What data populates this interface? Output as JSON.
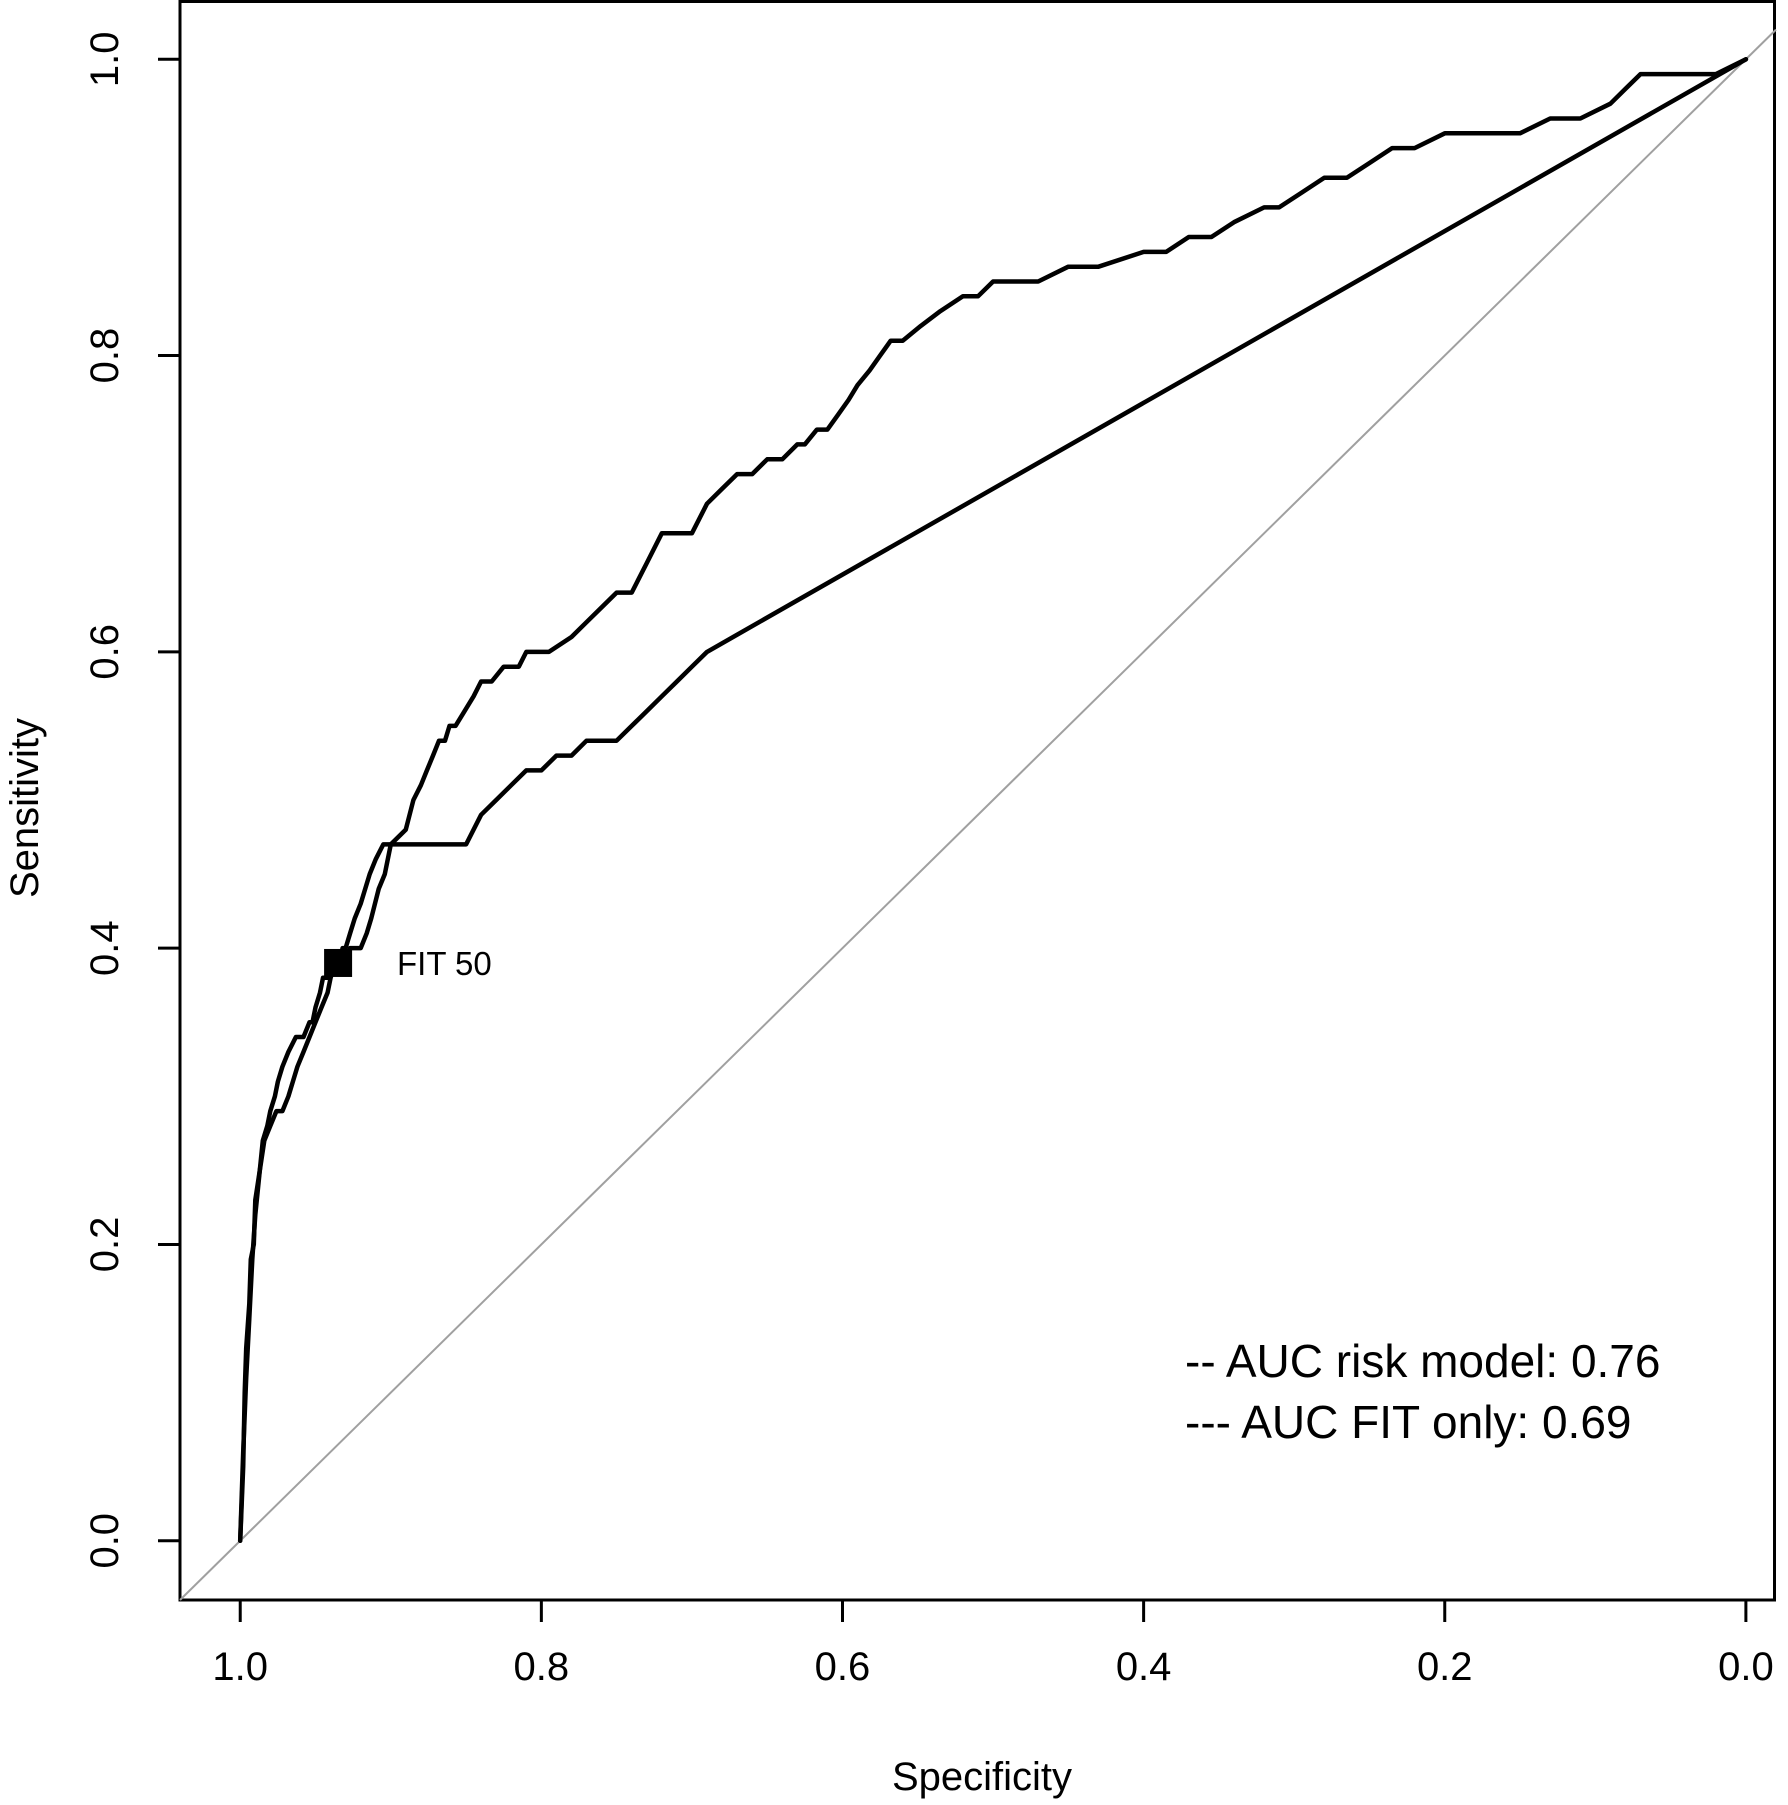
{
  "chart_data": {
    "type": "line",
    "title": "",
    "xlabel": "Specificity",
    "ylabel": "Sensitivity",
    "x_reversed": true,
    "xlim": [
      1.04,
      -0.02
    ],
    "ylim": [
      -0.04,
      1.04
    ],
    "x_ticks": [
      "1.0",
      "0.8",
      "0.6",
      "0.4",
      "0.2",
      "0.0"
    ],
    "x_tick_values": [
      1.0,
      0.8,
      0.6,
      0.4,
      0.2,
      0.0
    ],
    "y_ticks": [
      "0.0",
      "0.2",
      "0.4",
      "0.6",
      "0.8",
      "1.0"
    ],
    "y_tick_values": [
      0.0,
      0.2,
      0.4,
      0.6,
      0.8,
      1.0
    ],
    "grid": false,
    "legend_position": "bottom-right",
    "colors": {
      "line": "#000000",
      "reference": "#a0a0a0",
      "background": "#ffffff"
    },
    "legend": [
      {
        "text": "-- AUC risk model: 0.76"
      },
      {
        "text": "--- AUC FIT only: 0.69"
      }
    ],
    "annotation": {
      "text": "FIT 50",
      "x": 0.935,
      "y": 0.39
    },
    "reference_line": {
      "x": [
        1.0,
        0.0
      ],
      "y": [
        0.0,
        1.0
      ]
    },
    "series": [
      {
        "x": [
          1.0,
          0.998,
          0.997,
          0.996,
          0.994,
          0.993,
          0.991,
          0.99,
          0.987,
          0.985,
          0.982,
          0.98,
          0.977,
          0.975,
          0.972,
          0.968,
          0.963,
          0.958,
          0.954,
          0.952,
          0.95,
          0.947,
          0.945,
          0.942,
          0.94,
          0.937,
          0.935,
          0.932,
          0.93,
          0.927,
          0.92,
          0.916,
          0.913,
          0.908,
          0.904,
          0.9,
          0.89,
          0.885,
          0.88,
          0.876,
          0.872,
          0.868,
          0.864,
          0.861,
          0.857,
          0.851,
          0.845,
          0.84,
          0.833,
          0.825,
          0.82,
          0.815,
          0.81,
          0.795,
          0.78,
          0.77,
          0.76,
          0.75,
          0.74,
          0.73,
          0.72,
          0.7,
          0.69,
          0.68,
          0.67,
          0.66,
          0.65,
          0.64,
          0.63,
          0.625,
          0.617,
          0.61,
          0.603,
          0.596,
          0.59,
          0.582,
          0.575,
          0.568,
          0.56,
          0.548,
          0.535,
          0.52,
          0.51,
          0.5,
          0.49,
          0.47,
          0.45,
          0.43,
          0.4,
          0.385,
          0.37,
          0.355,
          0.34,
          0.32,
          0.31,
          0.295,
          0.28,
          0.265,
          0.25,
          0.235,
          0.22,
          0.2,
          0.18,
          0.15,
          0.13,
          0.11,
          0.09,
          0.08,
          0.07,
          0.05,
          0.02,
          0.0
        ],
        "y": [
          0.0,
          0.05,
          0.1,
          0.13,
          0.16,
          0.19,
          0.2,
          0.23,
          0.25,
          0.27,
          0.28,
          0.29,
          0.3,
          0.31,
          0.32,
          0.33,
          0.34,
          0.34,
          0.35,
          0.35,
          0.36,
          0.37,
          0.38,
          0.38,
          0.39,
          0.39,
          0.39,
          0.39,
          0.39,
          0.4,
          0.4,
          0.41,
          0.42,
          0.44,
          0.45,
          0.47,
          0.48,
          0.5,
          0.51,
          0.52,
          0.53,
          0.54,
          0.54,
          0.55,
          0.55,
          0.56,
          0.57,
          0.58,
          0.58,
          0.59,
          0.59,
          0.59,
          0.6,
          0.6,
          0.61,
          0.62,
          0.63,
          0.64,
          0.64,
          0.66,
          0.68,
          0.68,
          0.7,
          0.71,
          0.72,
          0.72,
          0.73,
          0.73,
          0.74,
          0.74,
          0.75,
          0.75,
          0.76,
          0.77,
          0.78,
          0.79,
          0.8,
          0.81,
          0.81,
          0.82,
          0.83,
          0.84,
          0.84,
          0.85,
          0.85,
          0.85,
          0.86,
          0.86,
          0.87,
          0.87,
          0.88,
          0.88,
          0.89,
          0.9,
          0.9,
          0.91,
          0.92,
          0.92,
          0.93,
          0.94,
          0.94,
          0.95,
          0.95,
          0.95,
          0.96,
          0.96,
          0.97,
          0.98,
          0.99,
          0.99,
          0.99,
          1.0
        ]
      },
      {
        "x": [
          1.0,
          0.998,
          0.996,
          0.994,
          0.992,
          0.99,
          0.987,
          0.984,
          0.98,
          0.976,
          0.972,
          0.968,
          0.965,
          0.962,
          0.958,
          0.954,
          0.95,
          0.946,
          0.942,
          0.94,
          0.937,
          0.934,
          0.932,
          0.93,
          0.927,
          0.924,
          0.92,
          0.917,
          0.914,
          0.91,
          0.905,
          0.9,
          0.89,
          0.87,
          0.85,
          0.84,
          0.83,
          0.82,
          0.81,
          0.8,
          0.79,
          0.78,
          0.77,
          0.76,
          0.75,
          0.74,
          0.73,
          0.72,
          0.71,
          0.7,
          0.69,
          0.0
        ],
        "y": [
          0.0,
          0.06,
          0.11,
          0.15,
          0.19,
          0.22,
          0.25,
          0.27,
          0.28,
          0.29,
          0.29,
          0.3,
          0.31,
          0.32,
          0.33,
          0.34,
          0.35,
          0.36,
          0.37,
          0.38,
          0.39,
          0.39,
          0.4,
          0.4,
          0.41,
          0.42,
          0.43,
          0.44,
          0.45,
          0.46,
          0.47,
          0.47,
          0.47,
          0.47,
          0.47,
          0.49,
          0.5,
          0.51,
          0.52,
          0.52,
          0.53,
          0.53,
          0.54,
          0.54,
          0.54,
          0.55,
          0.56,
          0.57,
          0.58,
          0.59,
          0.6,
          1.0
        ]
      }
    ]
  }
}
